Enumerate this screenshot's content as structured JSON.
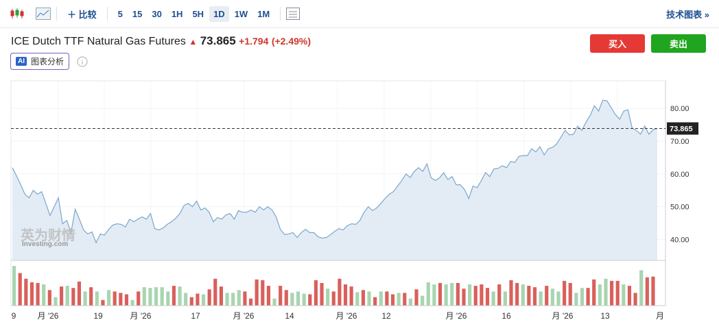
{
  "toolbar": {
    "compare": "比较",
    "intervals": [
      "5",
      "15",
      "30",
      "1H",
      "5H",
      "1D",
      "1W",
      "1M"
    ],
    "active_interval": "1D",
    "tech_chart": "技术图表 »"
  },
  "header": {
    "title": "ICE Dutch TTF Natural Gas Futures",
    "price": "73.865",
    "change": "+1.794",
    "change_pct": "(+2.49%)",
    "buy": "买入",
    "sell": "卖出",
    "ai_badge": "AI",
    "ai_label": "图表分析"
  },
  "chart_data": {
    "type": "area",
    "color": "#7aa6cc",
    "fill": "#e3ecf5",
    "watermark": [
      "英为财情",
      "Investing.com"
    ],
    "ylim": [
      33.6,
      88.4
    ],
    "yticks": [
      {
        "value": 40,
        "label": "40.00"
      },
      {
        "value": 50,
        "label": "50.00"
      },
      {
        "value": 60,
        "label": "60.00"
      },
      {
        "value": 70,
        "label": "70.00"
      },
      {
        "value": 80,
        "label": "80.00"
      }
    ],
    "price_line": {
      "value": 73.865,
      "label": "73.865"
    },
    "x_labels": [
      "9",
      "月 '26",
      "19",
      "月 '26",
      "17",
      "月 '26",
      "14",
      "月 '26",
      "12",
      "月 '26",
      "16",
      "月 '26",
      "13",
      "月"
    ],
    "values": [
      61.9,
      59.4,
      56.7,
      53.8,
      52.7,
      55,
      53.8,
      54.6,
      51,
      47.3,
      50,
      52.7,
      44.8,
      45.8,
      42.1,
      49.2,
      46.2,
      42.9,
      41.7,
      42.3,
      39,
      41.7,
      41.3,
      43.1,
      44.4,
      44.8,
      44.6,
      43.8,
      46.2,
      45.4,
      46.2,
      46.9,
      46.2,
      47.9,
      43.3,
      42.9,
      43.5,
      44.6,
      45.4,
      46.5,
      47.9,
      50.4,
      51,
      50,
      51.7,
      49,
      49.6,
      48.3,
      45.4,
      46.7,
      46.2,
      47.5,
      47.9,
      46.2,
      48.8,
      48.3,
      48.3,
      49,
      48.3,
      50,
      49,
      50,
      49,
      46.9,
      43.1,
      41.5,
      41.7,
      42.1,
      40.6,
      42.1,
      43.1,
      42.1,
      42.1,
      40.8,
      40.4,
      40.6,
      41.5,
      42.5,
      43.3,
      42.9,
      44.2,
      44.8,
      44.6,
      45.8,
      48.3,
      50,
      48.8,
      49.6,
      51,
      52.5,
      53.8,
      54.6,
      56.3,
      58,
      60,
      58.9,
      60.8,
      61.9,
      60.8,
      63.1,
      58.8,
      58,
      58.8,
      60.4,
      58.3,
      59.2,
      56.7,
      56.7,
      55.2,
      52.5,
      56.3,
      55.8,
      58,
      60.4,
      59.2,
      61.5,
      61.7,
      62.5,
      61.9,
      63.8,
      63.5,
      65.4,
      65.6,
      65.6,
      67.7,
      66.7,
      68.3,
      65.8,
      67.7,
      68.1,
      69.2,
      71.2,
      73.3,
      71.9,
      72.1,
      74.6,
      73.3,
      75.8,
      77.9,
      80.8,
      79.2,
      82.5,
      82.3,
      80.2,
      78.1,
      76.7,
      79.2,
      79.6,
      74,
      73.3,
      72.1,
      74.6,
      72.1,
      73.5,
      73.865
    ],
    "volume": {
      "ylim": [
        0,
        60
      ],
      "values": [
        56,
        46,
        38,
        33,
        32,
        30,
        22,
        12,
        27,
        28,
        25,
        34,
        20,
        26,
        20,
        8,
        22,
        20,
        18,
        16,
        8,
        20,
        26,
        25,
        26,
        26,
        20,
        28,
        27,
        18,
        12,
        17,
        16,
        23,
        38,
        27,
        18,
        18,
        22,
        20,
        10,
        37,
        36,
        28,
        10,
        28,
        22,
        18,
        20,
        17,
        16,
        36,
        32,
        24,
        20,
        38,
        30,
        27,
        19,
        22,
        20,
        12,
        20,
        20,
        16,
        18,
        18,
        10,
        23,
        14,
        33,
        30,
        32,
        30,
        32,
        32,
        24,
        30,
        28,
        30,
        25,
        20,
        30,
        20,
        36,
        32,
        30,
        28,
        26,
        20,
        28,
        24,
        20,
        35,
        32,
        18,
        25,
        25,
        37,
        30,
        38,
        35,
        35,
        30,
        28,
        18,
        50,
        40,
        41
      ],
      "colors": [
        "#a8d5b0",
        "#d9605c",
        "#d9605c",
        "#d9605c",
        "#d9605c",
        "#a8d5b0",
        "#d9605c",
        "#a8d5b0",
        "#d9605c",
        "#a8d5b0",
        "#d9605c",
        "#d9605c",
        "#a8d5b0",
        "#d9605c",
        "#a8d5b0",
        "#d9605c",
        "#a8d5b0",
        "#d9605c",
        "#d9605c",
        "#d9605c",
        "#a8d5b0",
        "#d9605c",
        "#a8d5b0",
        "#a8d5b0",
        "#a8d5b0",
        "#a8d5b0",
        "#a8d5b0",
        "#d9605c",
        "#a8d5b0",
        "#a8d5b0",
        "#d9605c",
        "#d9605c",
        "#a8d5b0",
        "#d9605c",
        "#d9605c",
        "#d9605c",
        "#a8d5b0",
        "#a8d5b0",
        "#a8d5b0",
        "#d9605c",
        "#d9605c",
        "#d9605c",
        "#d9605c",
        "#d9605c",
        "#a8d5b0",
        "#d9605c",
        "#d9605c",
        "#a8d5b0",
        "#a8d5b0",
        "#a8d5b0",
        "#d9605c",
        "#d9605c",
        "#d9605c",
        "#a8d5b0",
        "#d9605c",
        "#d9605c",
        "#d9605c",
        "#d9605c",
        "#a8d5b0",
        "#d9605c",
        "#a8d5b0",
        "#d9605c",
        "#a8d5b0",
        "#d9605c",
        "#d9605c",
        "#a8d5b0",
        "#d9605c",
        "#a8d5b0",
        "#d9605c",
        "#a8d5b0",
        "#a8d5b0",
        "#a8d5b0",
        "#d9605c",
        "#a8d5b0",
        "#a8d5b0",
        "#d9605c",
        "#d9605c",
        "#a8d5b0",
        "#d9605c",
        "#d9605c",
        "#d9605c",
        "#a8d5b0",
        "#d9605c",
        "#a8d5b0",
        "#d9605c",
        "#d9605c",
        "#a8d5b0",
        "#d9605c",
        "#d9605c",
        "#a8d5b0",
        "#d9605c",
        "#a8d5b0",
        "#a8d5b0",
        "#d9605c",
        "#d9605c",
        "#a8d5b0",
        "#a8d5b0",
        "#d9605c",
        "#d9605c",
        "#a8d5b0",
        "#a8d5b0",
        "#d9605c",
        "#d9605c",
        "#a8d5b0",
        "#d9605c",
        "#d9605c",
        "#a8d5b0",
        "#d9605c",
        "#d9605c"
      ]
    }
  }
}
